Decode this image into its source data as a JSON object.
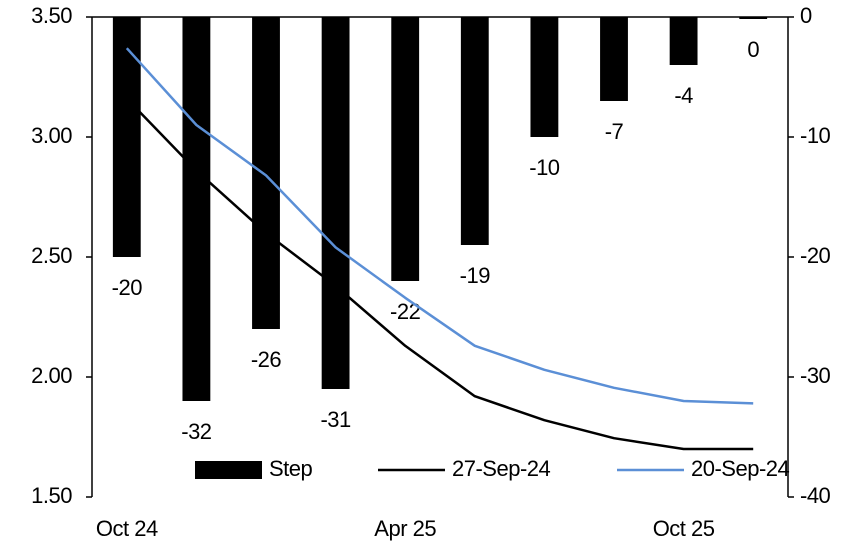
{
  "chart_data": {
    "type": "combo",
    "categories": [
      "Oct 24",
      null,
      null,
      null,
      "Apr 25",
      null,
      null,
      null,
      "Oct 25",
      null
    ],
    "series": [
      {
        "name": "Step",
        "type": "bar",
        "axis": "y2",
        "color": "#000000",
        "values": [
          -20,
          -32,
          -26,
          -31,
          -22,
          -19,
          -10,
          -7,
          -4,
          0
        ]
      },
      {
        "name": "27-Sep-24",
        "type": "line",
        "color": "#000000",
        "values": [
          3.16,
          2.86,
          2.6,
          2.38,
          2.13,
          1.92,
          1.82,
          1.745,
          1.7,
          1.7
        ]
      },
      {
        "name": "20-Sep-24",
        "type": "line",
        "color": "#5b8fd6",
        "values": [
          3.37,
          3.05,
          2.84,
          2.54,
          2.33,
          2.13,
          2.03,
          1.955,
          1.9,
          1.89
        ]
      }
    ],
    "ylim": [
      1.5,
      3.5
    ],
    "yticks": [
      {
        "value": 1.5,
        "label": "1.50"
      },
      {
        "value": 2,
        "label": "2.00"
      },
      {
        "value": 2.5,
        "label": "2.50"
      },
      {
        "value": 3,
        "label": "3.00"
      },
      {
        "value": 3.5,
        "label": "3.50"
      }
    ],
    "y2lim": [
      -40,
      0
    ],
    "y2ticks": [
      -40,
      -30,
      -20,
      -10,
      0
    ],
    "legend": "bottom"
  }
}
